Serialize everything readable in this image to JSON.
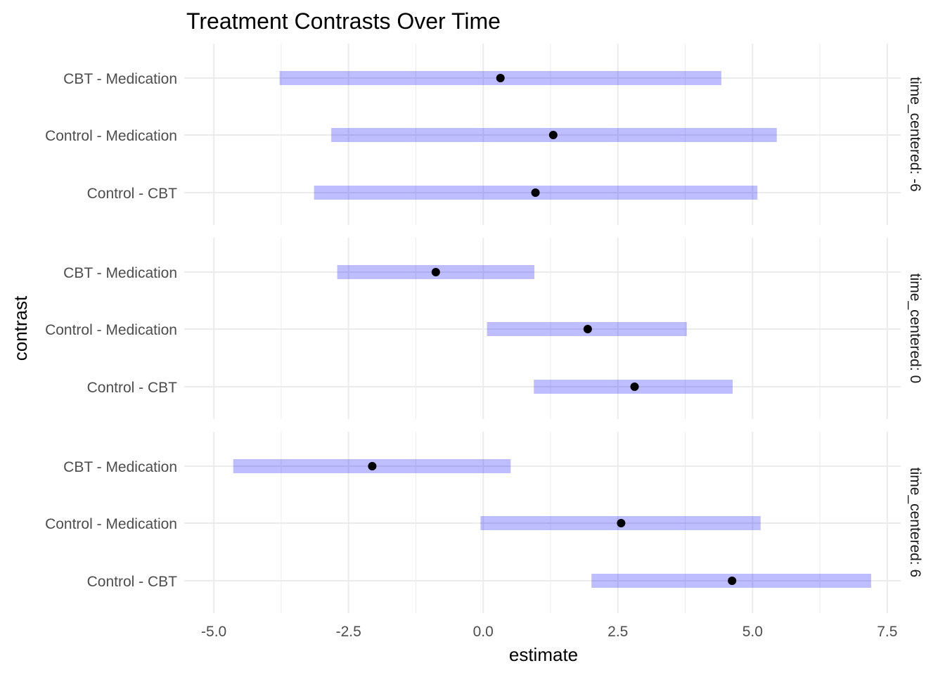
{
  "chart_data": {
    "type": "forest",
    "title": "Treatment Contrasts Over Time",
    "xlabel": "estimate",
    "ylabel": "contrast",
    "xlim": [
      -5.55,
      7.75
    ],
    "x_ticks": [
      -5.0,
      -2.5,
      0.0,
      2.5,
      5.0,
      7.5
    ],
    "x_tick_labels": [
      "-5.0",
      "-2.5",
      "0.0",
      "2.5",
      "5.0",
      "7.5"
    ],
    "grid": true,
    "colors": {
      "interval": "#0000ff",
      "point": "#000000"
    },
    "categories": [
      "CBT - Medication",
      "Control - Medication",
      "Control - CBT"
    ],
    "panels": [
      {
        "strip_label": "time_centered: -6",
        "rows": [
          {
            "contrast": "CBT - Medication",
            "estimate": 0.32,
            "lower": -3.78,
            "upper": 4.42
          },
          {
            "contrast": "Control - Medication",
            "estimate": 1.3,
            "lower": -2.82,
            "upper": 5.45
          },
          {
            "contrast": "Control - CBT",
            "estimate": 0.97,
            "lower": -3.14,
            "upper": 5.09
          }
        ]
      },
      {
        "strip_label": "time_centered: 0",
        "rows": [
          {
            "contrast": "CBT - Medication",
            "estimate": -0.88,
            "lower": -2.71,
            "upper": 0.95
          },
          {
            "contrast": "Control - Medication",
            "estimate": 1.94,
            "lower": 0.07,
            "upper": 3.78
          },
          {
            "contrast": "Control - CBT",
            "estimate": 2.81,
            "lower": 0.94,
            "upper": 4.63
          }
        ]
      },
      {
        "strip_label": "time_centered: 6",
        "rows": [
          {
            "contrast": "CBT - Medication",
            "estimate": -2.06,
            "lower": -4.64,
            "upper": 0.51
          },
          {
            "contrast": "Control - Medication",
            "estimate": 2.56,
            "lower": -0.05,
            "upper": 5.15
          },
          {
            "contrast": "Control - CBT",
            "estimate": 4.62,
            "lower": 2.01,
            "upper": 7.2
          }
        ]
      }
    ]
  }
}
